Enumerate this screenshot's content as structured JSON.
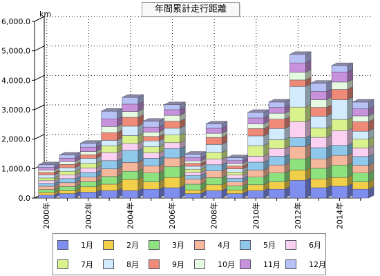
{
  "chart_data": {
    "type": "bar",
    "stacked": true,
    "style": "3d",
    "title": "年間累計走行距離",
    "ylabel": "km",
    "ylim": [
      0,
      6000
    ],
    "yticks": [
      "0.0",
      "1,000.0",
      "2,000.0",
      "3,000.0",
      "4,000.0",
      "5,000.0",
      "6,000.0"
    ],
    "grid": true,
    "legend_position": "bottom",
    "categories": [
      "2000年",
      "2001年",
      "2002年",
      "2003年",
      "2004年",
      "2005年",
      "2006年",
      "2007年",
      "2008年",
      "2009年",
      "2010年",
      "2011年",
      "2012年",
      "2013年",
      "2014年",
      "2015年"
    ],
    "x_tick_labels": [
      "2000年",
      "",
      "2002年",
      "",
      "2004年",
      "",
      "2006年",
      "",
      "2008年",
      "",
      "2010年",
      "",
      "2012年",
      "",
      "2014年",
      ""
    ],
    "series": [
      {
        "name": "1月",
        "color": "#7f8ff0",
        "values": [
          100,
          150,
          200,
          250,
          250,
          300,
          350,
          150,
          250,
          150,
          250,
          300,
          600,
          350,
          400,
          300
        ]
      },
      {
        "name": "2月",
        "color": "#f2cf48",
        "values": [
          90,
          100,
          180,
          220,
          380,
          250,
          350,
          120,
          200,
          120,
          200,
          250,
          350,
          300,
          300,
          250
        ]
      },
      {
        "name": "3月",
        "color": "#8ee27e",
        "values": [
          100,
          140,
          180,
          260,
          280,
          300,
          360,
          200,
          240,
          140,
          260,
          300,
          380,
          360,
          420,
          300
        ]
      },
      {
        "name": "4月",
        "color": "#f6b89c",
        "values": [
          110,
          130,
          150,
          260,
          300,
          240,
          300,
          170,
          230,
          140,
          240,
          270,
          420,
          320,
          330,
          260
        ]
      },
      {
        "name": "5月",
        "color": "#90c8ec",
        "values": [
          100,
          140,
          160,
          280,
          410,
          260,
          320,
          130,
          210,
          120,
          270,
          300,
          300,
          380,
          340,
          300
        ]
      },
      {
        "name": "6月",
        "color": "#fbd1f1",
        "values": [
          90,
          120,
          150,
          270,
          230,
          180,
          200,
          110,
          190,
          110,
          200,
          260,
          540,
          350,
          500,
          290
        ]
      },
      {
        "name": "7月",
        "color": "#d9f28d",
        "values": [
          90,
          130,
          160,
          230,
          270,
          210,
          260,
          100,
          230,
          100,
          360,
          300,
          500,
          320,
          380,
          300
        ]
      },
      {
        "name": "8月",
        "color": "#d2ecfd",
        "values": [
          100,
          120,
          170,
          190,
          320,
          200,
          230,
          100,
          270,
          110,
          330,
          380,
          700,
          400,
          670,
          270
        ]
      },
      {
        "name": "9月",
        "color": "#f08a78",
        "values": [
          90,
          110,
          120,
          260,
          300,
          150,
          240,
          100,
          240,
          100,
          250,
          320,
          220,
          300,
          350,
          320
        ]
      },
      {
        "name": "10月",
        "color": "#e6fae1",
        "values": [
          80,
          100,
          110,
          210,
          200,
          150,
          200,
          80,
          140,
          80,
          160,
          200,
          260,
          260,
          250,
          200
        ]
      },
      {
        "name": "11月",
        "color": "#c891dc",
        "values": [
          90,
          110,
          150,
          260,
          250,
          170,
          190,
          110,
          170,
          100,
          200,
          200,
          320,
          280,
          340,
          240
        ]
      },
      {
        "name": "12月",
        "color": "#b8c1f5",
        "values": [
          90,
          110,
          130,
          260,
          230,
          200,
          170,
          120,
          150,
          100,
          190,
          180,
          290,
          280,
          220,
          230
        ]
      }
    ]
  }
}
